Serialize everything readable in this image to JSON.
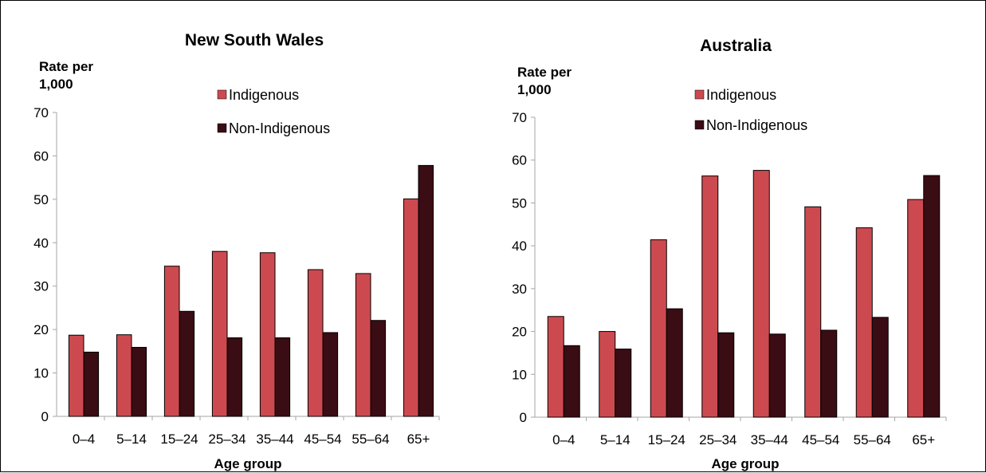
{
  "colors": {
    "indigenous": "#cc4a4f",
    "non_indigenous": "#3a0c14",
    "axis": "#a6a6a6"
  },
  "chart_data": [
    {
      "type": "bar",
      "title": "New South Wales",
      "ylabel_lines": [
        "Rate per",
        "1,000"
      ],
      "xlabel": "Age group",
      "ylim": [
        0,
        70
      ],
      "yticks": [
        0,
        10,
        20,
        30,
        40,
        50,
        60,
        70
      ],
      "categories": [
        "0–4",
        "5–14",
        "15–24",
        "25–34",
        "35–44",
        "45–54",
        "55–64",
        "65+"
      ],
      "series": [
        {
          "name": "Indigenous",
          "values": [
            18.7,
            18.8,
            34.6,
            38.0,
            37.7,
            33.8,
            32.9,
            50.1
          ]
        },
        {
          "name": "Non-Indigenous",
          "values": [
            14.8,
            15.9,
            24.2,
            18.1,
            18.1,
            19.3,
            22.1,
            57.8
          ]
        }
      ],
      "legend": "top-center, stacked"
    },
    {
      "type": "bar",
      "title": "Australia",
      "ylabel_lines": [
        "Rate per",
        "1,000"
      ],
      "xlabel": "Age group",
      "ylim": [
        0,
        70
      ],
      "yticks": [
        0,
        10,
        20,
        30,
        40,
        50,
        60,
        70
      ],
      "categories": [
        "0–4",
        "5–14",
        "15–24",
        "25–34",
        "35–44",
        "45–54",
        "55–64",
        "65+"
      ],
      "series": [
        {
          "name": "Indigenous",
          "values": [
            23.5,
            20.0,
            41.4,
            56.3,
            57.6,
            49.1,
            44.2,
            50.8
          ]
        },
        {
          "name": "Non-Indigenous",
          "values": [
            16.7,
            15.9,
            25.3,
            19.7,
            19.4,
            20.3,
            23.3,
            56.4
          ]
        }
      ],
      "legend": "top-center, stacked"
    }
  ]
}
